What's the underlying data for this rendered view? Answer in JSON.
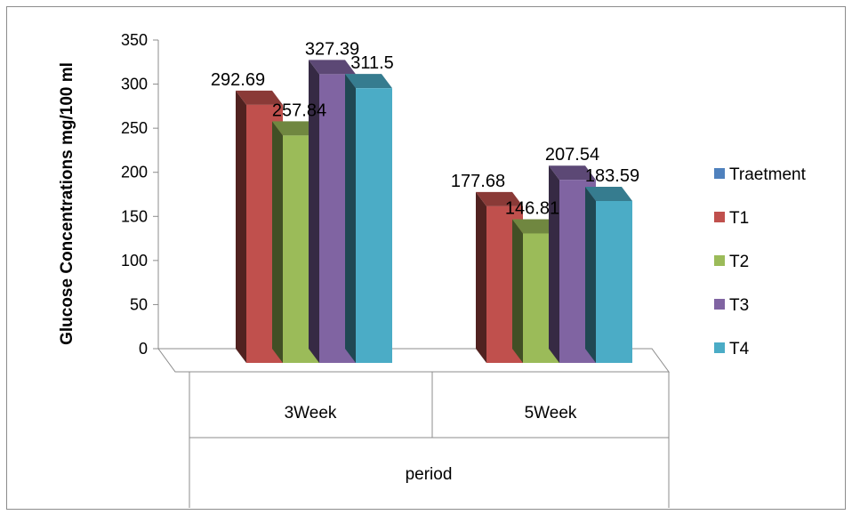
{
  "chart_data": {
    "type": "bar",
    "categories": [
      "3Week",
      "5Week"
    ],
    "group_label": "period",
    "series": [
      {
        "name": "T1",
        "values": [
          292.69,
          177.68
        ],
        "color": "#c0504d"
      },
      {
        "name": "T2",
        "values": [
          257.84,
          146.81
        ],
        "color": "#9bbb59"
      },
      {
        "name": "T3",
        "values": [
          327.39,
          207.54
        ],
        "color": "#8064a2"
      },
      {
        "name": "T4",
        "values": [
          311.5,
          183.59
        ],
        "color": "#4bacc6"
      }
    ],
    "legend": [
      {
        "name": "Traetment",
        "color": "#4f81bd"
      },
      {
        "name": "T1",
        "color": "#c0504d"
      },
      {
        "name": "T2",
        "color": "#9bbb59"
      },
      {
        "name": "T3",
        "color": "#8064a2"
      },
      {
        "name": "T4",
        "color": "#4bacc6"
      }
    ],
    "ylabel": "Glucose Concentrations mg/100 ml",
    "xlabel": "period",
    "ylim": [
      0,
      350
    ],
    "yticks": [
      "0",
      "50",
      "100",
      "150",
      "200",
      "250",
      "300",
      "350"
    ],
    "data_labels": [
      [
        "292.69",
        "177.68"
      ],
      [
        "257.84",
        "146.81"
      ],
      [
        "327.39",
        "207.54"
      ],
      [
        "311.5",
        "183.59"
      ]
    ],
    "legend_position": "right",
    "grid": false,
    "style": "3d-column"
  }
}
